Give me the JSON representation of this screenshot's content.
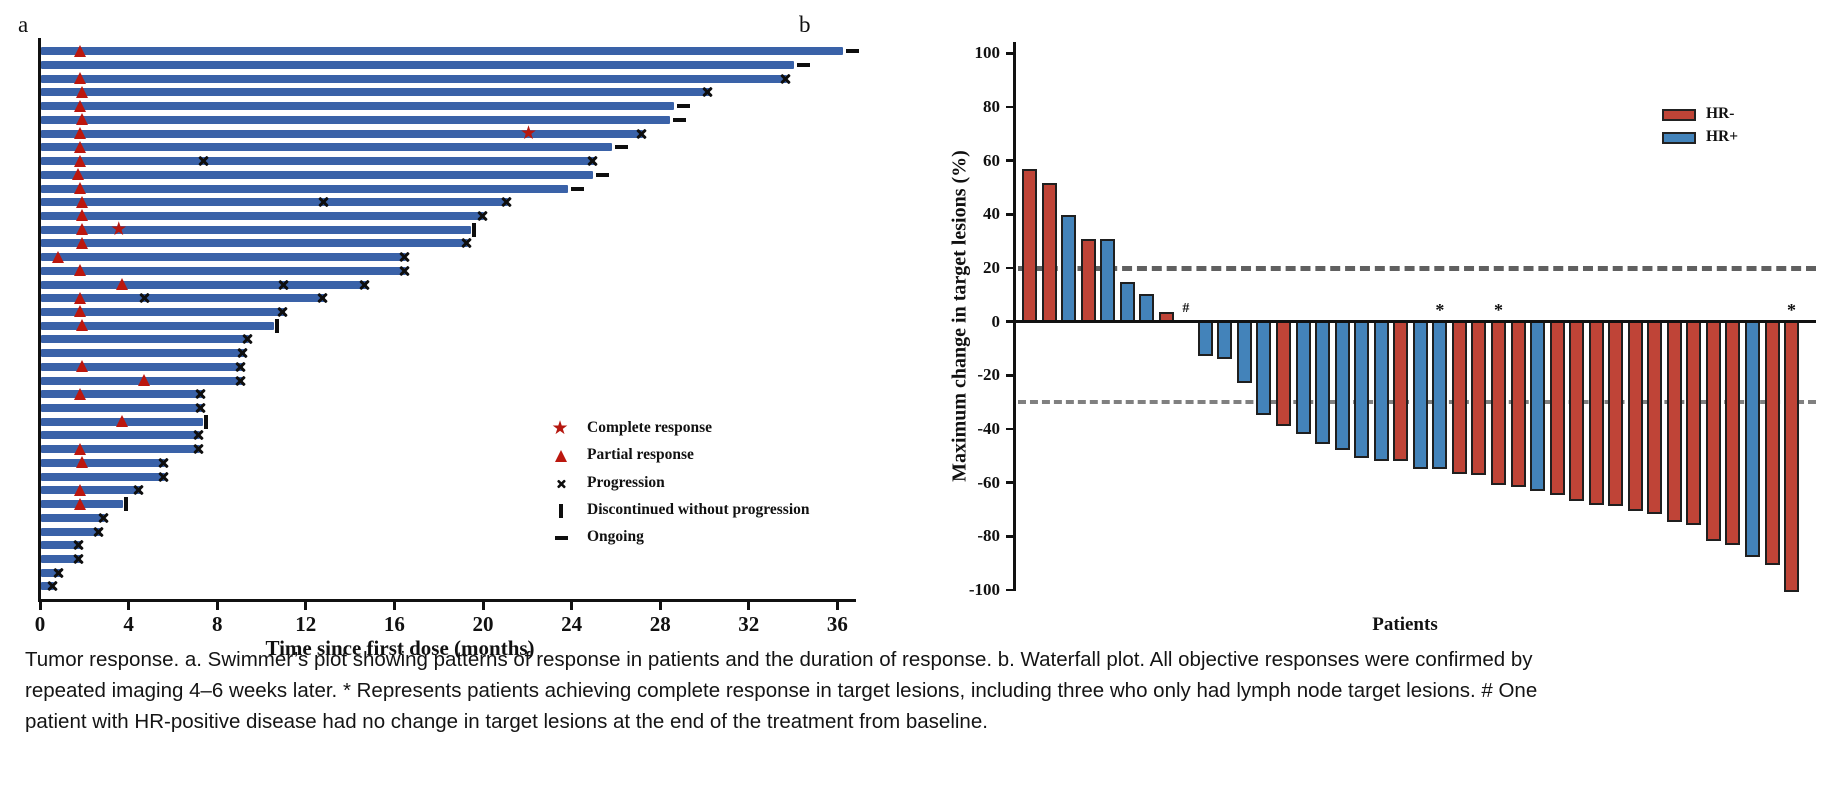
{
  "figure": {
    "panel_a_label": "a",
    "panel_b_label": "b",
    "caption": "Tumor response. a. Swimmer’s plot showing patterns of response in patients and the duration of response. b. Waterfall plot. All objective responses were confirmed by repeated imaging 4–6 weeks later. * Represents patients achieving complete response in target lesions, including three who only had lymph node target lesions. # One patient with HR-positive disease had no change in target lesions at the end of the treatment from baseline."
  },
  "colors": {
    "swimmer_bar": "#3a62a8",
    "hr_minus": "#bf4437",
    "hr_plus": "#4383ba",
    "marker_red": "#bb170e",
    "axis_black": "#111111",
    "ref_line_upper": "#606060",
    "ref_line_lower": "#808080"
  },
  "chart_data": [
    {
      "type": "swimmer",
      "xlabel": "Time since first dose (months)",
      "xticks": [
        0,
        4,
        8,
        12,
        16,
        20,
        24,
        28,
        32,
        36
      ],
      "xlim": [
        0,
        37.5
      ],
      "legend_position": "lower-right-inside",
      "legend": [
        {
          "marker": "star",
          "label": "Complete response"
        },
        {
          "marker": "triangle",
          "label": "Partial response"
        },
        {
          "marker": "x",
          "label": "Progression"
        },
        {
          "marker": "vbar",
          "label": "Discontinued without progression"
        },
        {
          "marker": "dash",
          "label": "Ongoing"
        }
      ],
      "patients": [
        {
          "duration": 36.2,
          "end": "ongoing",
          "events": [
            {
              "type": "partial_response",
              "month": 1.8
            }
          ]
        },
        {
          "duration": 34.0,
          "end": "ongoing",
          "events": []
        },
        {
          "duration": 33.7,
          "end": "progression",
          "events": [
            {
              "type": "partial_response",
              "month": 1.8
            }
          ]
        },
        {
          "duration": 30.2,
          "end": "progression",
          "events": [
            {
              "type": "partial_response",
              "month": 1.9
            }
          ]
        },
        {
          "duration": 28.6,
          "end": "ongoing",
          "events": [
            {
              "type": "partial_response",
              "month": 1.8
            }
          ]
        },
        {
          "duration": 28.4,
          "end": "ongoing",
          "events": [
            {
              "type": "partial_response",
              "month": 1.9
            }
          ]
        },
        {
          "duration": 27.2,
          "end": "progression",
          "events": [
            {
              "type": "partial_response",
              "month": 1.8
            },
            {
              "type": "complete_response",
              "month": 22.1
            }
          ]
        },
        {
          "duration": 25.8,
          "end": "ongoing",
          "events": [
            {
              "type": "partial_response",
              "month": 1.8
            }
          ]
        },
        {
          "duration": 25.0,
          "end": "progression",
          "events": [
            {
              "type": "partial_response",
              "month": 1.8
            },
            {
              "type": "progression",
              "month": 7.4
            }
          ]
        },
        {
          "duration": 24.9,
          "end": "ongoing",
          "events": [
            {
              "type": "partial_response",
              "month": 1.7
            }
          ]
        },
        {
          "duration": 23.8,
          "end": "ongoing",
          "events": [
            {
              "type": "partial_response",
              "month": 1.8
            }
          ]
        },
        {
          "duration": 21.1,
          "end": "progression",
          "events": [
            {
              "type": "partial_response",
              "month": 1.9
            },
            {
              "type": "progression",
              "month": 12.8
            }
          ]
        },
        {
          "duration": 20.0,
          "end": "progression",
          "events": [
            {
              "type": "partial_response",
              "month": 1.9
            }
          ]
        },
        {
          "duration": 19.4,
          "end": "discontinued",
          "events": [
            {
              "type": "partial_response",
              "month": 1.9
            },
            {
              "type": "complete_response",
              "month": 3.6
            }
          ]
        },
        {
          "duration": 19.3,
          "end": "progression",
          "events": [
            {
              "type": "partial_response",
              "month": 1.9
            }
          ]
        },
        {
          "duration": 16.5,
          "end": "progression",
          "events": [
            {
              "type": "partial_response",
              "month": 0.8
            }
          ]
        },
        {
          "duration": 16.5,
          "end": "progression",
          "events": [
            {
              "type": "partial_response",
              "month": 1.8
            }
          ]
        },
        {
          "duration": 14.7,
          "end": "progression",
          "events": [
            {
              "type": "partial_response",
              "month": 3.7
            },
            {
              "type": "progression",
              "month": 11.0
            }
          ]
        },
        {
          "duration": 12.8,
          "end": "progression",
          "events": [
            {
              "type": "partial_response",
              "month": 1.8
            },
            {
              "type": "progression",
              "month": 4.7
            }
          ]
        },
        {
          "duration": 11.0,
          "end": "progression",
          "events": [
            {
              "type": "partial_response",
              "month": 1.8
            }
          ]
        },
        {
          "duration": 10.5,
          "end": "discontinued",
          "events": [
            {
              "type": "partial_response",
              "month": 1.9
            }
          ]
        },
        {
          "duration": 9.4,
          "end": "progression",
          "events": []
        },
        {
          "duration": 9.2,
          "end": "progression",
          "events": []
        },
        {
          "duration": 9.1,
          "end": "progression",
          "events": [
            {
              "type": "partial_response",
              "month": 1.9
            }
          ]
        },
        {
          "duration": 9.1,
          "end": "progression",
          "events": [
            {
              "type": "partial_response",
              "month": 4.7
            }
          ]
        },
        {
          "duration": 7.3,
          "end": "progression",
          "events": [
            {
              "type": "partial_response",
              "month": 1.8
            }
          ]
        },
        {
          "duration": 7.3,
          "end": "progression",
          "events": []
        },
        {
          "duration": 7.3,
          "end": "discontinued",
          "events": [
            {
              "type": "partial_response",
              "month": 3.7
            }
          ]
        },
        {
          "duration": 7.2,
          "end": "progression",
          "events": []
        },
        {
          "duration": 7.2,
          "end": "progression",
          "events": [
            {
              "type": "partial_response",
              "month": 1.8
            }
          ]
        },
        {
          "duration": 5.6,
          "end": "progression",
          "events": [
            {
              "type": "partial_response",
              "month": 1.9
            }
          ]
        },
        {
          "duration": 5.6,
          "end": "progression",
          "events": []
        },
        {
          "duration": 4.5,
          "end": "progression",
          "events": [
            {
              "type": "partial_response",
              "month": 1.8
            }
          ]
        },
        {
          "duration": 3.7,
          "end": "discontinued",
          "events": [
            {
              "type": "partial_response",
              "month": 1.8
            }
          ]
        },
        {
          "duration": 2.9,
          "end": "progression",
          "events": []
        },
        {
          "duration": 2.7,
          "end": "progression",
          "events": []
        },
        {
          "duration": 1.8,
          "end": "progression",
          "events": []
        },
        {
          "duration": 1.8,
          "end": "progression",
          "events": []
        },
        {
          "duration": 0.9,
          "end": "progression",
          "events": []
        },
        {
          "duration": 0.6,
          "end": "progression",
          "events": []
        }
      ]
    },
    {
      "type": "bar",
      "title": "",
      "xlabel": "Patients",
      "ylabel": "Maximum change in target lesions (%)",
      "ylim": [
        -100,
        100
      ],
      "yticks": [
        100,
        80,
        60,
        40,
        20,
        0,
        -20,
        -40,
        -60,
        -80,
        -100
      ],
      "reference_lines": [
        20,
        -30
      ],
      "grid": false,
      "legend_position": "upper-right-inside",
      "legend": [
        {
          "label": "HR-",
          "group": "HR-"
        },
        {
          "label": "HR+",
          "group": "HR+"
        }
      ],
      "bars": [
        {
          "value": 56,
          "group": "HR-"
        },
        {
          "value": 51,
          "group": "HR-"
        },
        {
          "value": 39,
          "group": "HR+"
        },
        {
          "value": 30,
          "group": "HR-"
        },
        {
          "value": 30,
          "group": "HR+"
        },
        {
          "value": 14,
          "group": "HR+"
        },
        {
          "value": 9.5,
          "group": "HR+"
        },
        {
          "value": 3,
          "group": "HR-"
        },
        {
          "value": 0,
          "group": "HR+",
          "annotation": "#"
        },
        {
          "value": -12,
          "group": "HR+"
        },
        {
          "value": -13,
          "group": "HR+"
        },
        {
          "value": -22,
          "group": "HR+"
        },
        {
          "value": -34,
          "group": "HR+"
        },
        {
          "value": -38,
          "group": "HR-"
        },
        {
          "value": -41,
          "group": "HR+"
        },
        {
          "value": -45,
          "group": "HR+"
        },
        {
          "value": -47,
          "group": "HR+"
        },
        {
          "value": -50,
          "group": "HR+"
        },
        {
          "value": -51,
          "group": "HR+"
        },
        {
          "value": -51,
          "group": "HR-"
        },
        {
          "value": -54,
          "group": "HR+"
        },
        {
          "value": -54,
          "group": "HR+",
          "annotation": "*"
        },
        {
          "value": -56,
          "group": "HR-"
        },
        {
          "value": -56.5,
          "group": "HR-"
        },
        {
          "value": -60,
          "group": "HR-",
          "annotation": "*"
        },
        {
          "value": -61,
          "group": "HR-"
        },
        {
          "value": -62.5,
          "group": "HR+"
        },
        {
          "value": -64,
          "group": "HR-"
        },
        {
          "value": -66,
          "group": "HR-"
        },
        {
          "value": -67.5,
          "group": "HR-"
        },
        {
          "value": -68,
          "group": "HR-"
        },
        {
          "value": -70,
          "group": "HR-"
        },
        {
          "value": -71,
          "group": "HR-"
        },
        {
          "value": -74,
          "group": "HR-"
        },
        {
          "value": -75,
          "group": "HR-"
        },
        {
          "value": -81,
          "group": "HR-"
        },
        {
          "value": -82.5,
          "group": "HR-"
        },
        {
          "value": -87,
          "group": "HR+"
        },
        {
          "value": -90,
          "group": "HR-"
        },
        {
          "value": -100,
          "group": "HR-",
          "annotation": "*"
        }
      ]
    }
  ]
}
